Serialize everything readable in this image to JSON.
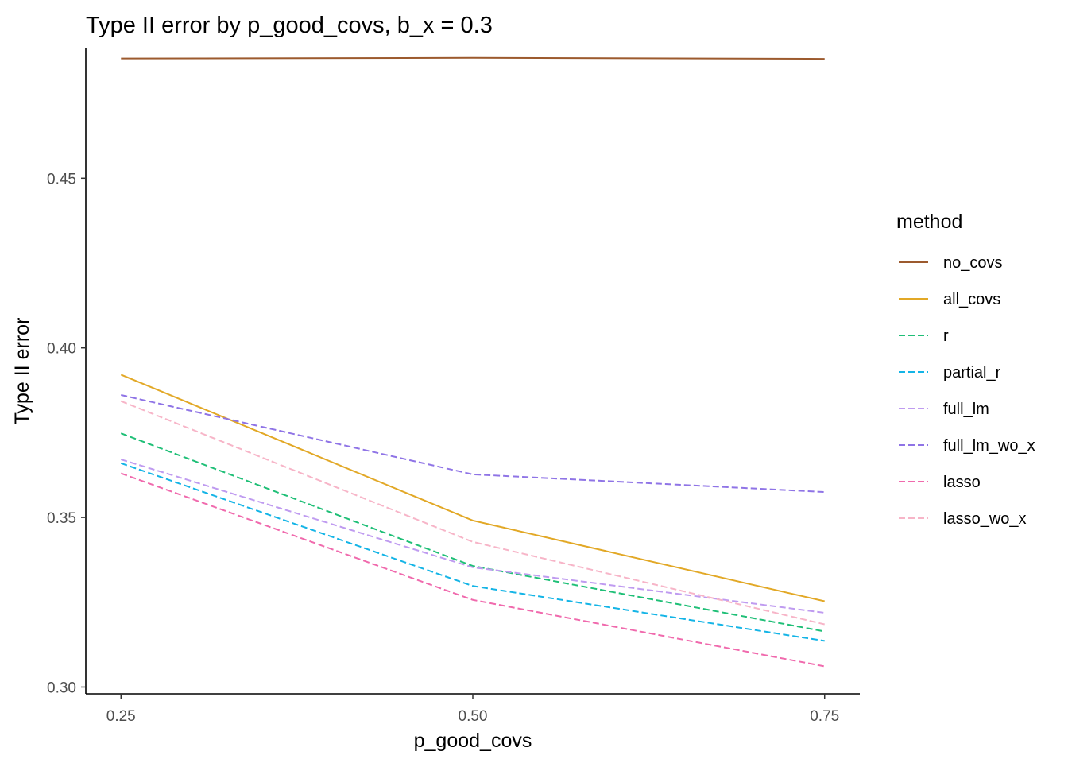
{
  "chart_data": {
    "type": "line",
    "title": "Type II error by p_good_covs, b_x = 0.3",
    "xlabel": "p_good_covs",
    "ylabel": "Type II error",
    "x": [
      0.25,
      0.5,
      0.75
    ],
    "x_tick_labels": [
      "0.25",
      "0.50",
      "0.75"
    ],
    "y_ticks": [
      0.3,
      0.35,
      0.4,
      0.45
    ],
    "y_tick_labels": [
      "0.30",
      "0.35",
      "0.40",
      "0.45"
    ],
    "xlim": [
      0.225,
      0.775
    ],
    "ylim": [
      0.298,
      0.4885
    ],
    "grid": false,
    "legend_title": "method",
    "legend_position": "right",
    "series": [
      {
        "name": "no_covs",
        "color": "#9c5a2e",
        "dash": "solid",
        "values": [
          0.4853,
          0.4855,
          0.4852
        ]
      },
      {
        "name": "all_covs",
        "color": "#e2a826",
        "dash": "solid",
        "values": [
          0.3921,
          0.3491,
          0.3253
        ]
      },
      {
        "name": "r",
        "color": "#1fbf77",
        "dash": "dashed",
        "values": [
          0.3748,
          0.3357,
          0.3164
        ]
      },
      {
        "name": "partial_r",
        "color": "#14b4e6",
        "dash": "dashed",
        "values": [
          0.366,
          0.3298,
          0.3136
        ]
      },
      {
        "name": "full_lm",
        "color": "#bf9bf0",
        "dash": "dashed",
        "values": [
          0.3671,
          0.3353,
          0.3219
        ]
      },
      {
        "name": "full_lm_wo_x",
        "color": "#8f74e6",
        "dash": "dashed",
        "values": [
          0.3861,
          0.3627,
          0.3575
        ]
      },
      {
        "name": "lasso",
        "color": "#f06aad",
        "dash": "dashed",
        "values": [
          0.363,
          0.3257,
          0.3061
        ]
      },
      {
        "name": "lasso_wo_x",
        "color": "#f7b5c8",
        "dash": "dashed",
        "values": [
          0.3843,
          0.3428,
          0.3185
        ]
      }
    ]
  }
}
